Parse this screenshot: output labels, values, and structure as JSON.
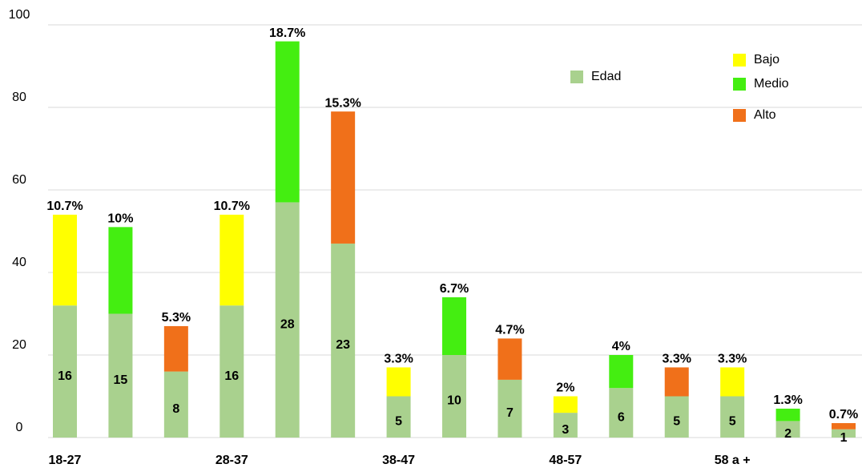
{
  "chart_data": {
    "type": "stacked_bar",
    "categories": [
      "18-27",
      null,
      null,
      "28-37",
      null,
      null,
      "38-47",
      null,
      null,
      "48-57",
      null,
      null,
      "58 a +",
      null,
      null
    ],
    "series": [
      {
        "name": "Edad",
        "color": "#a9d18e",
        "values": [
          32,
          30,
          16,
          32,
          57,
          47,
          10,
          20,
          14,
          6,
          12,
          10,
          10,
          4,
          2
        ]
      },
      {
        "name": "Bajo",
        "color": "#ffff00",
        "values": [
          22,
          null,
          null,
          22,
          null,
          null,
          7,
          null,
          null,
          4,
          null,
          null,
          7,
          null,
          null
        ]
      },
      {
        "name": "Medio",
        "color": "#44ee11",
        "values": [
          null,
          21,
          null,
          null,
          39,
          null,
          null,
          14,
          null,
          null,
          8,
          null,
          null,
          3,
          null
        ]
      },
      {
        "name": "Alto",
        "color": "#f0701a",
        "values": [
          null,
          null,
          11,
          null,
          null,
          32,
          null,
          null,
          10,
          null,
          null,
          7,
          null,
          null,
          1.5
        ]
      }
    ],
    "base_labels": [
      "16",
      "15",
      "8",
      "16",
      "28",
      "23",
      "5",
      "10",
      "7",
      "3",
      "6",
      "5",
      "5",
      "2",
      "1"
    ],
    "top_labels": [
      "10.7%",
      "10%",
      "5.3%",
      "10.7%",
      "18.7%",
      "15.3%",
      "3.3%",
      "6.7%",
      "4.7%",
      "2%",
      "4%",
      "3.3%",
      "3.3%",
      "1.3%",
      "0.7%"
    ],
    "ylim": [
      0,
      100
    ],
    "yticks": [
      0,
      20,
      40,
      60,
      80,
      100
    ],
    "grid": true
  }
}
